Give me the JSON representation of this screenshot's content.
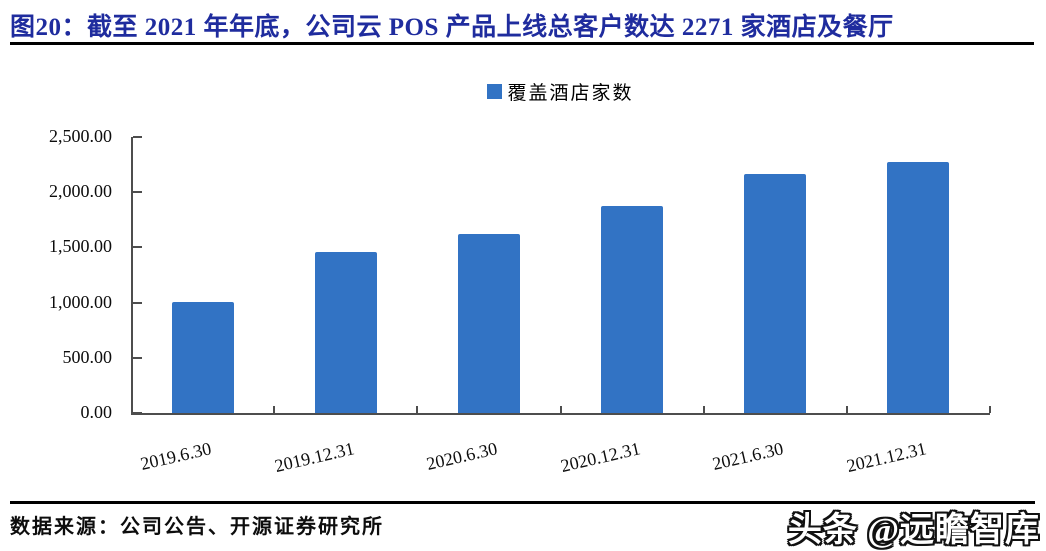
{
  "header": {
    "title": "图20：截至 2021 年年底，公司云 POS 产品上线总客户数达 2271 家酒店及餐厅"
  },
  "legend": {
    "label": "覆盖酒店家数"
  },
  "chart_data": {
    "type": "bar",
    "title": "覆盖酒店家数",
    "categories": [
      "2019.6.30",
      "2019.12.31",
      "2020.6.30",
      "2020.12.31",
      "2021.6.30",
      "2021.12.31"
    ],
    "series": [
      {
        "name": "覆盖酒店家数",
        "values": [
          1005,
          1460,
          1620,
          1875,
          2165,
          2271
        ]
      }
    ],
    "xlabel": "",
    "ylabel": "",
    "ylim": [
      0,
      2500
    ],
    "ytick_step": 500,
    "ytick_labels": [
      "0.00",
      "500.00",
      "1,000.00",
      "1,500.00",
      "2,000.00",
      "2,500.00"
    ],
    "grid": false,
    "legend_position": "top",
    "bar_color": "#3273C4",
    "axis_color": "#4d4d4d"
  },
  "footer": {
    "source": "数据来源：公司公告、开源证券研究所",
    "watermark": "头条 @远瞻智库"
  },
  "colors": {
    "title": "#1F2C9E",
    "bar": "#3273C4",
    "rule": "#000000"
  }
}
